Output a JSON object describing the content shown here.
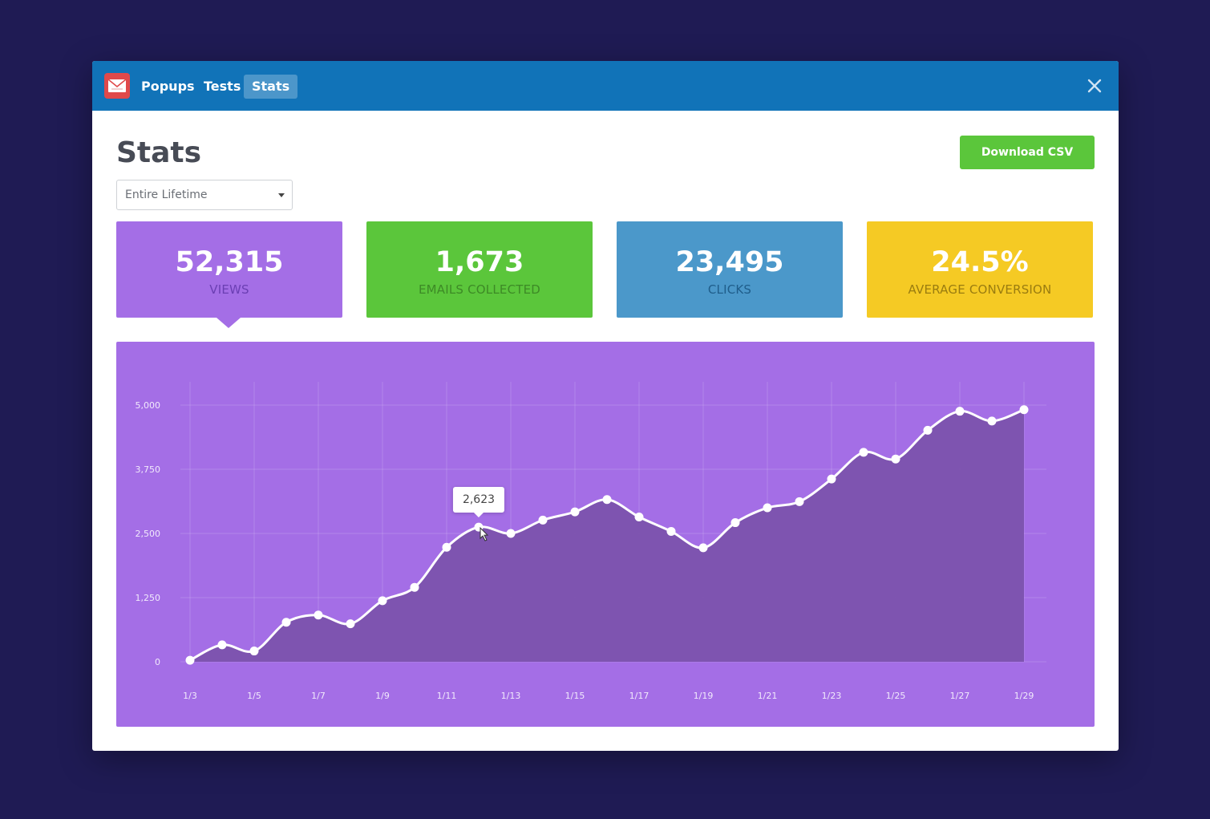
{
  "nav": {
    "tabs": [
      {
        "label": "Popups"
      },
      {
        "label": "Tests"
      },
      {
        "label": "Stats"
      }
    ],
    "active_tab": "Stats"
  },
  "page": {
    "title": "Stats",
    "download_label": "Download CSV",
    "date_range": "Entire Lifetime"
  },
  "cards": [
    {
      "value": "52,315",
      "label": "VIEWS",
      "color": "#a46ee6",
      "label_color": "#6b3fb3",
      "selected": true
    },
    {
      "value": "1,673",
      "label": "EMAILS COLLECTED",
      "color": "#5bc63b",
      "label_color": "#3d8a26"
    },
    {
      "value": "23,495",
      "label": "CLICKS",
      "color": "#4b98ca",
      "label_color": "#1f5d8a"
    },
    {
      "value": "24.5%",
      "label": "AVERAGE CONVERSION",
      "color": "#f5ca24",
      "label_color": "#9a7c10"
    }
  ],
  "colors": {
    "background": "#1f1b54",
    "titlebar": "#1173b8",
    "chart_bg": "#a46ee6",
    "chart_area": "#7c52ad",
    "button": "#5bc63b"
  },
  "tooltip": {
    "value": "2,623",
    "index": 9
  },
  "chart_data": {
    "type": "area",
    "title": "",
    "xlabel": "",
    "ylabel": "",
    "x": [
      "1/3",
      "1/4",
      "1/5",
      "1/6",
      "1/7",
      "1/8",
      "1/9",
      "1/10",
      "1/11",
      "1/12",
      "1/13",
      "1/14",
      "1/15",
      "1/16",
      "1/17",
      "1/18",
      "1/19",
      "1/20",
      "1/21",
      "1/22",
      "1/23",
      "1/24",
      "1/25",
      "1/26",
      "1/27",
      "1/28",
      "1/29"
    ],
    "x_tick_labels": [
      "1/3",
      "1/5",
      "1/7",
      "1/9",
      "1/11",
      "1/13",
      "1/15",
      "1/17",
      "1/19",
      "1/21",
      "1/23",
      "1/25",
      "1/27",
      "1/29"
    ],
    "values": [
      30,
      330,
      210,
      770,
      910,
      740,
      1190,
      1450,
      2230,
      2623,
      2500,
      2760,
      2920,
      3160,
      2820,
      2540,
      2220,
      2710,
      3000,
      3120,
      3560,
      4080,
      3950,
      4510,
      4880,
      4690,
      4910
    ],
    "ylim": [
      0,
      5000
    ],
    "y_ticks": [
      "0",
      "1,250",
      "2,500",
      "3,750",
      "5,000"
    ],
    "grid": true,
    "legend": "none"
  }
}
